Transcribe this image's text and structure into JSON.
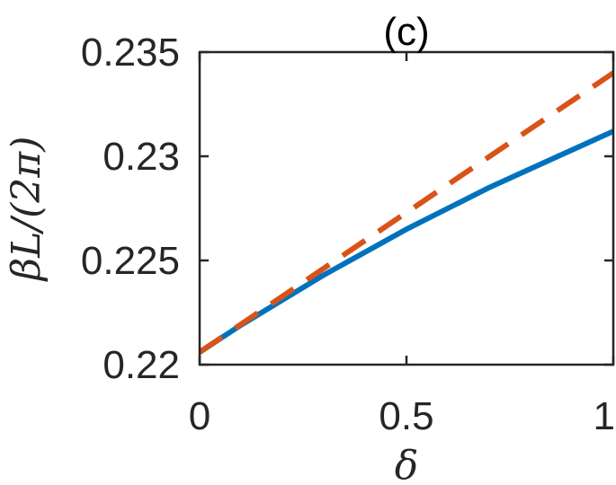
{
  "chart_data": {
    "type": "line",
    "title": "(c)",
    "xlabel": "δ",
    "ylabel": "βL/(2π)",
    "xlim": [
      0,
      1
    ],
    "ylim": [
      0.22,
      0.235
    ],
    "x_ticks": [
      0,
      0.5,
      1
    ],
    "x_tick_labels": [
      "0",
      "0.5",
      "1"
    ],
    "y_ticks": [
      0.22,
      0.225,
      0.23,
      0.235
    ],
    "y_tick_labels": [
      "0.22",
      "0.225",
      "0.23",
      "0.235"
    ],
    "grid": false,
    "legend": "none",
    "series": [
      {
        "style": "solid",
        "color": "#0072BD",
        "x": [
          0,
          0.1,
          0.2,
          0.3,
          0.4,
          0.5,
          0.6,
          0.7,
          0.8,
          0.9,
          1.0
        ],
        "y": [
          0.2206,
          0.2219,
          0.2231,
          0.2243,
          0.2254,
          0.2265,
          0.2275,
          0.2285,
          0.2294,
          0.2303,
          0.2312
        ]
      },
      {
        "style": "dashed",
        "color": "#D95319",
        "x": [
          0,
          1
        ],
        "y": [
          0.2206,
          0.234
        ]
      }
    ]
  }
}
